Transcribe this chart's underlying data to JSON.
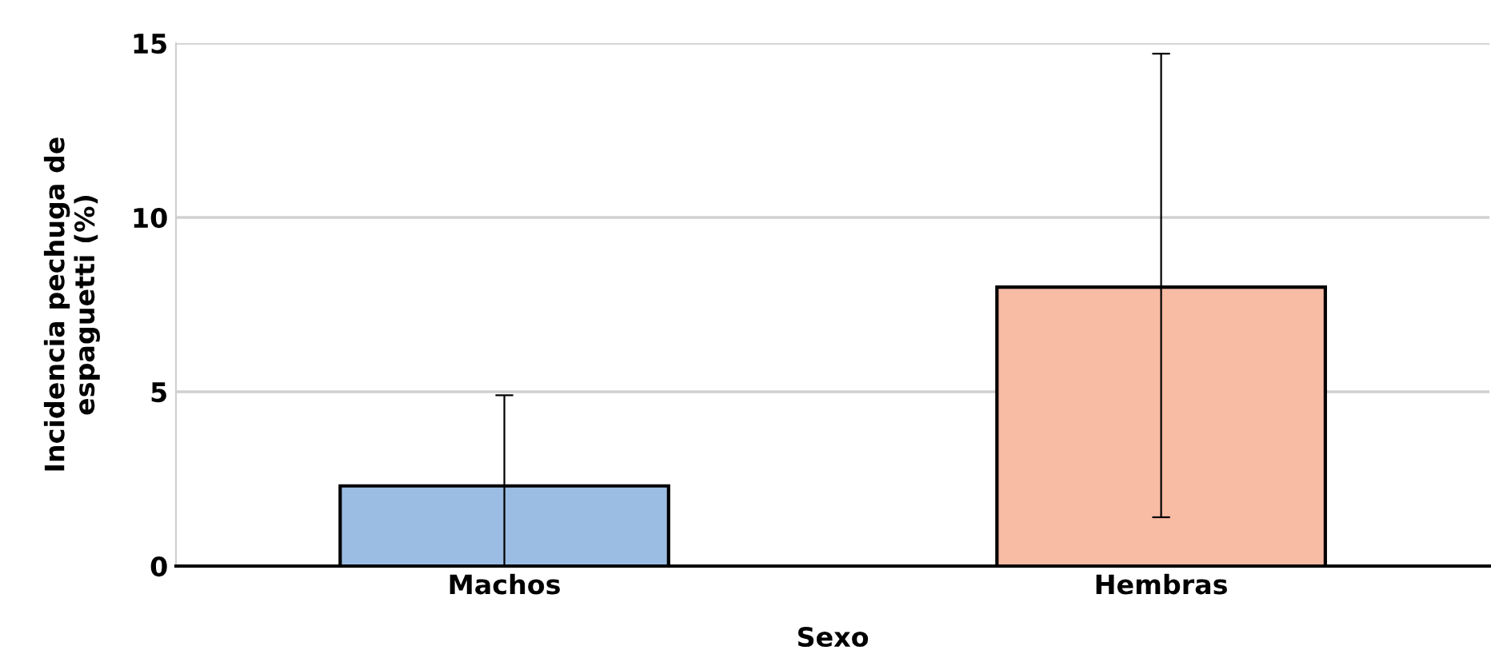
{
  "chart_data": {
    "type": "bar",
    "xlabel": "Sexo",
    "ylabel": "Incidencia pechuga de\nespaguetti (%)",
    "categories": [
      "Machos",
      "Hembras"
    ],
    "values": [
      2.3,
      8.0
    ],
    "colors": [
      "#9bbde3",
      "#f8bba4"
    ],
    "errors": [
      [
        0,
        4.9
      ],
      [
        1.4,
        14.7
      ]
    ],
    "ylim": [
      0,
      15
    ],
    "yticks": [
      0,
      5,
      10,
      15
    ],
    "grid": "y"
  }
}
